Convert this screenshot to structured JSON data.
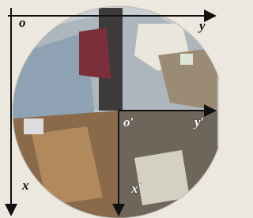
{
  "axes": [
    {
      "origin": "o",
      "x": "x",
      "y": "y"
    },
    {
      "origin": "o′",
      "x": "x′",
      "y": "y′"
    }
  ]
}
